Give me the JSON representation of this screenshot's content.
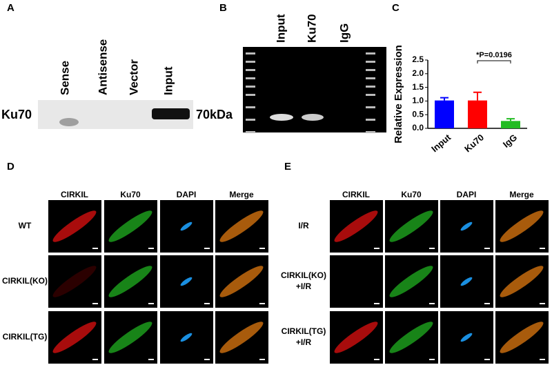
{
  "panel_labels": [
    "A",
    "B",
    "C",
    "D",
    "E"
  ],
  "panel_a": {
    "lanes": [
      "Sense",
      "Antisense",
      "Vector",
      "Input"
    ],
    "protein": "Ku70",
    "size": "70kDa"
  },
  "panel_b": {
    "lanes": [
      "Input",
      "Ku70",
      "IgG"
    ]
  },
  "chart_data": {
    "type": "bar",
    "ylabel": "Relative Expression",
    "annotation": "*P=0.0196",
    "categories": [
      "Input",
      "Ku70",
      "IgG"
    ],
    "values": [
      1.02,
      1.02,
      0.27
    ],
    "errors": [
      0.1,
      0.3,
      0.08
    ],
    "colors": [
      "#0000ff",
      "#ff0000",
      "#22bb22"
    ],
    "ylim": [
      0,
      2.5
    ],
    "yticks": [
      {
        "value": 0,
        "label": "0.0"
      },
      0.5,
      {
        "value": 1,
        "label": "1.0"
      },
      1.5,
      {
        "value": 2,
        "label": "2.0"
      },
      2.5
    ]
  },
  "panel_d": {
    "columns": [
      "CIRKIL",
      "Ku70",
      "DAPI",
      "Merge"
    ],
    "rows": [
      [
        "WT"
      ],
      [
        "CIRKIL(KO)"
      ],
      [
        "CIRKIL(TG)"
      ]
    ]
  },
  "panel_e": {
    "columns": [
      "CIRKIL",
      "Ku70",
      "DAPI",
      "Merge"
    ],
    "rows": [
      [
        "I/R"
      ],
      [
        "CIRKIL(KO)",
        "+I/R"
      ],
      [
        "CIRKIL(TG)",
        "+I/R"
      ]
    ]
  }
}
